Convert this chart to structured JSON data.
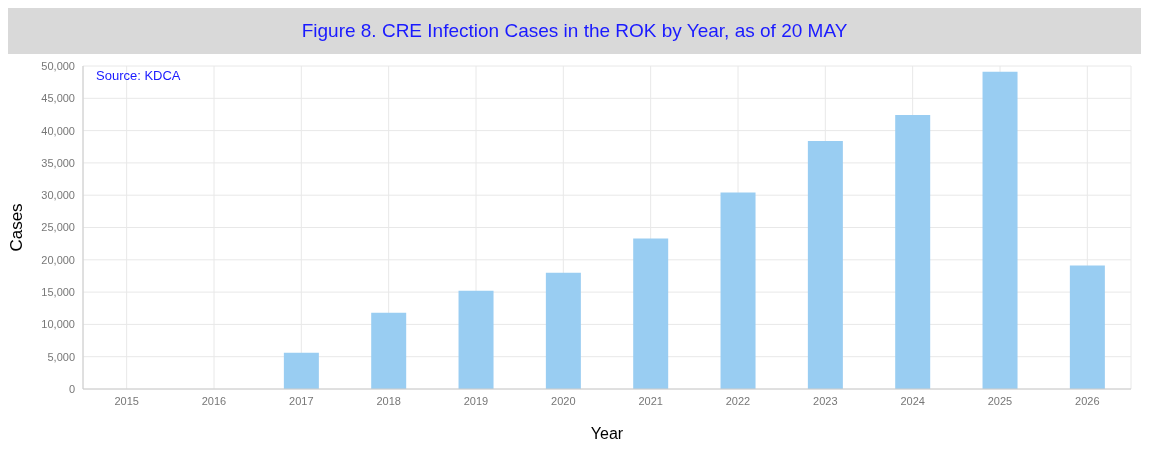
{
  "chart_data": {
    "type": "bar",
    "title": "Figure 8. CRE Infection Cases in the ROK by Year, as of 20 MAY",
    "xlabel": "Year",
    "ylabel": "Cases",
    "annotations": [
      "Source: KDCA"
    ],
    "categories": [
      "2015",
      "2016",
      "2017",
      "2018",
      "2019",
      "2020",
      "2021",
      "2022",
      "2023",
      "2024",
      "2025",
      "2026"
    ],
    "values": [
      0,
      0,
      5600,
      11800,
      15200,
      18000,
      23300,
      30400,
      38400,
      42400,
      49100,
      19100
    ],
    "color": "#99cdf2",
    "ylim": [
      0,
      50000
    ],
    "yticks": [
      {
        "value": 0,
        "label": "0"
      },
      {
        "value": 5000,
        "label": "5,000"
      },
      {
        "value": 10000,
        "label": "10,000"
      },
      {
        "value": 15000,
        "label": "15,000"
      },
      {
        "value": 20000,
        "label": "20,000"
      },
      {
        "value": 25000,
        "label": "25,000"
      },
      {
        "value": 30000,
        "label": "30,000"
      },
      {
        "value": 35000,
        "label": "35,000"
      },
      {
        "value": 40000,
        "label": "40,000"
      },
      {
        "value": 45000,
        "label": "45,000"
      },
      {
        "value": 50000,
        "label": "50,000"
      }
    ],
    "grid": true
  }
}
